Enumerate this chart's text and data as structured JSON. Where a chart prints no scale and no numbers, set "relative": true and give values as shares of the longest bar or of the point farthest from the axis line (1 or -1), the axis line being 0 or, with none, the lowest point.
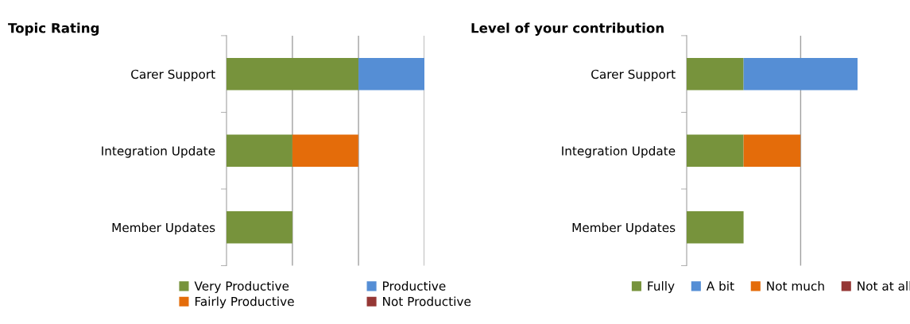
{
  "chart_data": [
    {
      "type": "bar",
      "title": "Topic Rating",
      "orientation": "horizontal",
      "stacked": true,
      "relative": true,
      "legend": "bottom",
      "categories": [
        "Carer Support",
        "Integration Update",
        "Member Updates"
      ],
      "series": [
        {
          "name": "Very Productive",
          "color": "#77933c",
          "values": [
            0.667,
            0.333,
            0.333
          ]
        },
        {
          "name": "Fairly Productive",
          "color": "#e46c0a",
          "values": [
            null,
            0.333,
            null
          ]
        },
        {
          "name": "Productive",
          "color": "#558ed5",
          "values": [
            0.333,
            null,
            null
          ]
        },
        {
          "name": "Not Productive",
          "color": "#953735",
          "values": [
            null,
            null,
            null
          ]
        }
      ],
      "ref_lines": [
        {
          "axis": "x",
          "value": 0.333,
          "color": "#a0a0a0"
        },
        {
          "axis": "x",
          "value": 0.667,
          "color": "#a0a0a0"
        },
        {
          "axis": "x",
          "value": 1,
          "color": "#a0a0a0"
        }
      ]
    },
    {
      "type": "bar",
      "title": "Level of your contribution",
      "orientation": "horizontal",
      "stacked": true,
      "relative": true,
      "legend": "bottom",
      "categories": [
        "Carer Support",
        "Integration Update",
        "Member Updates"
      ],
      "series": [
        {
          "name": "Fully",
          "color": "#77933c",
          "values": [
            0.333,
            0.333,
            0.333
          ]
        },
        {
          "name": "A bit",
          "color": "#558ed5",
          "values": [
            0.667,
            null,
            null
          ]
        },
        {
          "name": "Not much",
          "color": "#e46c0a",
          "values": [
            null,
            0.333,
            null
          ]
        },
        {
          "name": "Not at all",
          "color": "#953735",
          "values": [
            null,
            null,
            null
          ]
        }
      ],
      "ref_lines": [
        {
          "axis": "x",
          "value": 0.667,
          "color": "#a0a0a0"
        }
      ]
    }
  ]
}
